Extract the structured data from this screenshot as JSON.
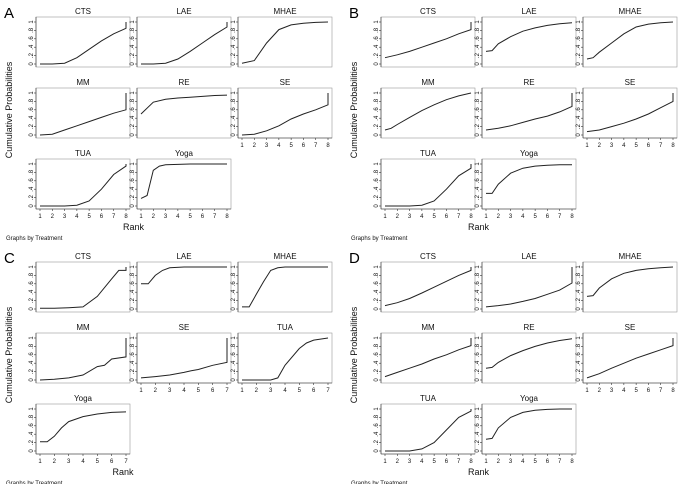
{
  "chart_data": [
    {
      "type": "line",
      "letter": "A",
      "xlabel": "Rank",
      "ylabel": "Cumulative Probabilities",
      "note": "Graphs by Treatment",
      "yticks": [
        "0",
        ".2",
        ".4",
        ".6",
        ".8",
        "1"
      ],
      "ylim": [
        0,
        1
      ],
      "xlim": [
        1,
        8
      ],
      "xticks": [
        1,
        2,
        3,
        4,
        5,
        6,
        7,
        8
      ],
      "panels": [
        {
          "name": "CTS",
          "x": [
            1,
            2,
            3,
            4,
            5,
            6,
            7,
            8,
            8
          ],
          "y": [
            0,
            0,
            0.02,
            0.15,
            0.35,
            0.55,
            0.72,
            0.85,
            1
          ]
        },
        {
          "name": "LAE",
          "x": [
            1,
            2,
            3,
            4,
            5,
            6,
            7,
            8,
            8
          ],
          "y": [
            0,
            0,
            0.02,
            0.12,
            0.3,
            0.5,
            0.7,
            0.88,
            1
          ]
        },
        {
          "name": "MHAE",
          "x": [
            1,
            2,
            3,
            4,
            5,
            6,
            7,
            8
          ],
          "y": [
            0.02,
            0.08,
            0.5,
            0.82,
            0.93,
            0.97,
            0.99,
            1
          ]
        },
        {
          "name": "MM",
          "x": [
            1,
            2,
            3,
            4,
            5,
            6,
            7,
            8,
            8
          ],
          "y": [
            0,
            0.02,
            0.12,
            0.22,
            0.32,
            0.42,
            0.52,
            0.6,
            1
          ]
        },
        {
          "name": "RE",
          "x": [
            1,
            2,
            3,
            4,
            5,
            6,
            7,
            8
          ],
          "y": [
            0.5,
            0.78,
            0.85,
            0.88,
            0.9,
            0.92,
            0.94,
            0.95
          ]
        },
        {
          "name": "SE",
          "x": [
            1,
            2,
            3,
            4,
            5,
            6,
            7,
            8,
            8
          ],
          "y": [
            0,
            0.02,
            0.1,
            0.22,
            0.38,
            0.5,
            0.6,
            0.72,
            1
          ]
        },
        {
          "name": "TUA",
          "x": [
            1,
            2,
            3,
            4,
            5,
            6,
            7,
            8,
            8
          ],
          "y": [
            0,
            0,
            0,
            0.02,
            0.12,
            0.4,
            0.75,
            0.95,
            1
          ]
        },
        {
          "name": "Yoga",
          "x": [
            1,
            1.5,
            2,
            2.5,
            3,
            4,
            5,
            6,
            7,
            8
          ],
          "y": [
            0.18,
            0.25,
            0.85,
            0.95,
            0.98,
            0.99,
            1,
            1,
            1,
            1
          ]
        }
      ]
    },
    {
      "type": "line",
      "letter": "B",
      "xlabel": "Rank",
      "ylabel": "Cumulative Probabilities",
      "note": "Graphs by Treatment",
      "yticks": [
        "0",
        ".2",
        ".4",
        ".6",
        ".8",
        "1"
      ],
      "ylim": [
        0,
        1
      ],
      "xlim": [
        1,
        8
      ],
      "xticks": [
        1,
        2,
        3,
        4,
        5,
        6,
        7,
        8
      ],
      "panels": [
        {
          "name": "CTS",
          "x": [
            1,
            2,
            3,
            4,
            5,
            6,
            7,
            8,
            8
          ],
          "y": [
            0.15,
            0.22,
            0.3,
            0.4,
            0.5,
            0.6,
            0.72,
            0.82,
            1
          ]
        },
        {
          "name": "LAE",
          "x": [
            1,
            1.5,
            2,
            3,
            4,
            5,
            6,
            7,
            8
          ],
          "y": [
            0.3,
            0.32,
            0.48,
            0.65,
            0.78,
            0.86,
            0.92,
            0.96,
            0.98
          ]
        },
        {
          "name": "MHAE",
          "x": [
            1,
            1.5,
            2,
            3,
            4,
            5,
            6,
            7,
            8
          ],
          "y": [
            0.12,
            0.15,
            0.28,
            0.5,
            0.72,
            0.88,
            0.95,
            0.98,
            1
          ]
        },
        {
          "name": "MM",
          "x": [
            1,
            1.5,
            2,
            3,
            4,
            5,
            6,
            7,
            8
          ],
          "y": [
            0.12,
            0.16,
            0.25,
            0.42,
            0.58,
            0.72,
            0.84,
            0.93,
            1
          ]
        },
        {
          "name": "RE",
          "x": [
            1,
            2,
            3,
            4,
            5,
            6,
            7,
            8,
            8
          ],
          "y": [
            0.12,
            0.16,
            0.22,
            0.3,
            0.38,
            0.45,
            0.55,
            0.68,
            1
          ]
        },
        {
          "name": "SE",
          "x": [
            1,
            2,
            3,
            4,
            5,
            6,
            7,
            8,
            8
          ],
          "y": [
            0.08,
            0.12,
            0.2,
            0.28,
            0.38,
            0.5,
            0.65,
            0.8,
            1
          ]
        },
        {
          "name": "TUA",
          "x": [
            1,
            2,
            3,
            4,
            5,
            6,
            7,
            8,
            8
          ],
          "y": [
            0,
            0,
            0,
            0.02,
            0.12,
            0.4,
            0.72,
            0.9,
            1
          ]
        },
        {
          "name": "Yoga",
          "x": [
            1,
            1.5,
            2,
            3,
            4,
            5,
            6,
            7,
            8
          ],
          "y": [
            0.3,
            0.3,
            0.52,
            0.78,
            0.9,
            0.95,
            0.97,
            0.98,
            0.98
          ]
        }
      ]
    },
    {
      "type": "line",
      "letter": "C",
      "xlabel": "Rank",
      "ylabel": "Cumulative Probabilities",
      "note": "Graphs by Treatment",
      "yticks": [
        "0",
        ".2",
        ".4",
        ".6",
        ".8",
        "1"
      ],
      "ylim": [
        0,
        1
      ],
      "xlim": [
        1,
        7
      ],
      "xticks": [
        1,
        2,
        3,
        4,
        5,
        6,
        7
      ],
      "panels": [
        {
          "name": "CTS",
          "x": [
            1,
            2,
            3,
            4,
            5,
            6,
            6.5,
            7,
            7
          ],
          "y": [
            0.02,
            0.02,
            0.03,
            0.05,
            0.3,
            0.72,
            0.92,
            0.92,
            1
          ]
        },
        {
          "name": "LAE",
          "x": [
            1,
            1.5,
            2,
            2.5,
            3,
            4,
            5,
            6,
            7
          ],
          "y": [
            0.6,
            0.6,
            0.8,
            0.92,
            0.98,
            1,
            1,
            1,
            1
          ]
        },
        {
          "name": "MHAE",
          "x": [
            1,
            1.5,
            2,
            2.5,
            3,
            3.5,
            4,
            5,
            6,
            7
          ],
          "y": [
            0.05,
            0.05,
            0.35,
            0.65,
            0.92,
            0.98,
            1,
            1,
            1,
            1
          ]
        },
        {
          "name": "MM",
          "x": [
            1,
            2,
            3,
            4,
            5,
            5.5,
            6,
            7,
            7
          ],
          "y": [
            0,
            0.02,
            0.05,
            0.12,
            0.32,
            0.35,
            0.5,
            0.55,
            1
          ]
        },
        {
          "name": "SE",
          "x": [
            1,
            2,
            3,
            4,
            4.5,
            5,
            6,
            7,
            7
          ],
          "y": [
            0.05,
            0.08,
            0.12,
            0.18,
            0.22,
            0.25,
            0.35,
            0.42,
            1
          ]
        },
        {
          "name": "TUA",
          "x": [
            1,
            2,
            3,
            3.5,
            4,
            5,
            5.5,
            6,
            7
          ],
          "y": [
            0,
            0,
            0,
            0.05,
            0.35,
            0.75,
            0.88,
            0.95,
            1
          ]
        },
        {
          "name": "Yoga",
          "x": [
            1,
            1.5,
            2,
            2.5,
            3,
            4,
            5,
            6,
            7
          ],
          "y": [
            0.22,
            0.22,
            0.35,
            0.55,
            0.7,
            0.82,
            0.88,
            0.92,
            0.93
          ]
        }
      ]
    },
    {
      "type": "line",
      "letter": "D",
      "xlabel": "Rank",
      "ylabel": "Cumulative Probabilities",
      "note": "Graphs by Treatment",
      "yticks": [
        "0",
        ".2",
        ".4",
        ".6",
        ".8",
        "1"
      ],
      "ylim": [
        0,
        1
      ],
      "xlim": [
        1,
        8
      ],
      "xticks": [
        1,
        2,
        3,
        4,
        5,
        6,
        7,
        8
      ],
      "panels": [
        {
          "name": "CTS",
          "x": [
            1,
            2,
            3,
            4,
            5,
            6,
            7,
            8,
            8
          ],
          "y": [
            0.08,
            0.15,
            0.25,
            0.38,
            0.52,
            0.66,
            0.8,
            0.92,
            1
          ]
        },
        {
          "name": "LAE",
          "x": [
            1,
            2,
            3,
            4,
            5,
            6,
            7,
            8,
            8
          ],
          "y": [
            0.05,
            0.08,
            0.12,
            0.18,
            0.25,
            0.35,
            0.45,
            0.62,
            1
          ]
        },
        {
          "name": "MHAE",
          "x": [
            1,
            1.5,
            2,
            3,
            4,
            5,
            6,
            7,
            8
          ],
          "y": [
            0.3,
            0.32,
            0.5,
            0.72,
            0.85,
            0.92,
            0.96,
            0.98,
            1
          ]
        },
        {
          "name": "MM",
          "x": [
            1,
            2,
            3,
            4,
            5,
            6,
            7,
            8,
            8
          ],
          "y": [
            0.08,
            0.18,
            0.28,
            0.38,
            0.5,
            0.6,
            0.72,
            0.82,
            1
          ]
        },
        {
          "name": "RE",
          "x": [
            1,
            1.5,
            2,
            3,
            4,
            5,
            6,
            7,
            8
          ],
          "y": [
            0.28,
            0.3,
            0.42,
            0.58,
            0.7,
            0.8,
            0.88,
            0.94,
            0.98
          ]
        },
        {
          "name": "SE",
          "x": [
            1,
            2,
            3,
            4,
            5,
            6,
            7,
            8,
            8
          ],
          "y": [
            0.05,
            0.15,
            0.28,
            0.4,
            0.52,
            0.62,
            0.72,
            0.82,
            1
          ]
        },
        {
          "name": "TUA",
          "x": [
            1,
            2,
            3,
            4,
            5,
            6,
            7,
            8,
            8
          ],
          "y": [
            0,
            0,
            0,
            0.05,
            0.2,
            0.5,
            0.8,
            0.95,
            1
          ]
        },
        {
          "name": "Yoga",
          "x": [
            1,
            1.5,
            2,
            3,
            4,
            5,
            6,
            7,
            8
          ],
          "y": [
            0.28,
            0.3,
            0.55,
            0.8,
            0.92,
            0.97,
            0.99,
            1,
            1
          ]
        }
      ]
    }
  ]
}
